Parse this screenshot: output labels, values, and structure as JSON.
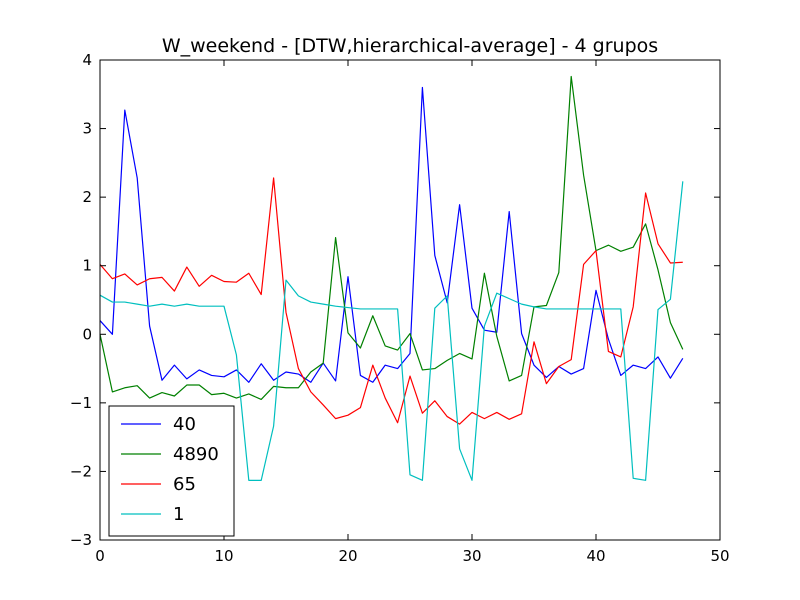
{
  "chart_data": {
    "type": "line",
    "title": "W_weekend - [DTW,hierarchical-average] - 4 grupos",
    "xlabel": "",
    "ylabel": "",
    "xlim": [
      0,
      50
    ],
    "ylim": [
      -3,
      4
    ],
    "xticks": [
      0,
      10,
      20,
      30,
      40,
      50
    ],
    "yticks": [
      -3,
      -2,
      -1,
      0,
      1,
      2,
      3,
      4
    ],
    "xtick_labels": [
      "0",
      "10",
      "20",
      "30",
      "40",
      "50"
    ],
    "ytick_labels": [
      "−3",
      "−2",
      "−1",
      "0",
      "1",
      "2",
      "3",
      "4"
    ],
    "grid": false,
    "legend_position": "lower-left",
    "x": [
      0,
      1,
      2,
      3,
      4,
      5,
      6,
      7,
      8,
      9,
      10,
      11,
      12,
      13,
      14,
      15,
      16,
      17,
      18,
      19,
      20,
      21,
      22,
      23,
      24,
      25,
      26,
      27,
      28,
      29,
      30,
      31,
      32,
      33,
      34,
      35,
      36,
      37,
      38,
      39,
      40,
      41,
      42,
      43,
      44,
      45,
      46,
      47
    ],
    "series": [
      {
        "name": "40",
        "color": "#0000ff",
        "values": [
          0.2,
          0.0,
          3.27,
          2.28,
          0.12,
          -0.67,
          -0.45,
          -0.65,
          -0.52,
          -0.6,
          -0.62,
          -0.52,
          -0.7,
          -0.43,
          -0.67,
          -0.55,
          -0.58,
          -0.7,
          -0.42,
          -0.68,
          0.84,
          -0.6,
          -0.7,
          -0.45,
          -0.5,
          -0.28,
          3.6,
          1.15,
          0.46,
          1.89,
          0.38,
          0.06,
          0.03,
          1.79,
          0.01,
          -0.45,
          -0.63,
          -0.47,
          -0.58,
          -0.5,
          0.64,
          -0.07,
          -0.6,
          -0.45,
          -0.5,
          -0.33,
          -0.64,
          -0.35
        ]
      },
      {
        "name": "4890",
        "color": "#008000",
        "values": [
          0.0,
          -0.84,
          -0.78,
          -0.75,
          -0.93,
          -0.85,
          -0.9,
          -0.74,
          -0.74,
          -0.88,
          -0.86,
          -0.93,
          -0.87,
          -0.95,
          -0.76,
          -0.78,
          -0.78,
          -0.55,
          -0.42,
          1.41,
          0.02,
          -0.2,
          0.27,
          -0.17,
          -0.23,
          0.01,
          -0.52,
          -0.5,
          -0.38,
          -0.28,
          -0.36,
          0.89,
          -0.03,
          -0.68,
          -0.6,
          0.4,
          0.42,
          0.9,
          3.76,
          2.32,
          1.22,
          1.3,
          1.21,
          1.27,
          1.61,
          0.94,
          0.17,
          -0.22
        ]
      },
      {
        "name": "65",
        "color": "#ff0000",
        "values": [
          1.02,
          0.81,
          0.88,
          0.72,
          0.81,
          0.83,
          0.63,
          0.98,
          0.7,
          0.86,
          0.77,
          0.76,
          0.89,
          0.58,
          2.28,
          0.32,
          -0.5,
          -0.84,
          -1.03,
          -1.23,
          -1.18,
          -1.07,
          -0.45,
          -0.93,
          -1.29,
          -0.61,
          -1.15,
          -0.97,
          -1.2,
          -1.31,
          -1.14,
          -1.23,
          -1.14,
          -1.24,
          -1.16,
          -0.11,
          -0.72,
          -0.47,
          -0.37,
          1.02,
          1.22,
          -0.25,
          -0.33,
          0.4,
          2.06,
          1.32,
          1.04,
          1.05
        ]
      },
      {
        "name": "1",
        "color": "#00bfbf",
        "values": [
          0.57,
          0.47,
          0.47,
          0.44,
          0.41,
          0.44,
          0.41,
          0.44,
          0.41,
          0.41,
          0.41,
          -0.3,
          -2.13,
          -2.13,
          -1.34,
          0.79,
          0.56,
          0.47,
          0.44,
          0.41,
          0.39,
          0.37,
          0.37,
          0.37,
          0.37,
          -2.05,
          -2.13,
          0.38,
          0.56,
          -1.67,
          -2.13,
          0.12,
          0.6,
          0.52,
          0.44,
          0.4,
          0.37,
          0.37,
          0.37,
          0.37,
          0.37,
          0.37,
          0.37,
          -2.1,
          -2.13,
          0.36,
          0.51,
          2.23
        ]
      }
    ]
  }
}
